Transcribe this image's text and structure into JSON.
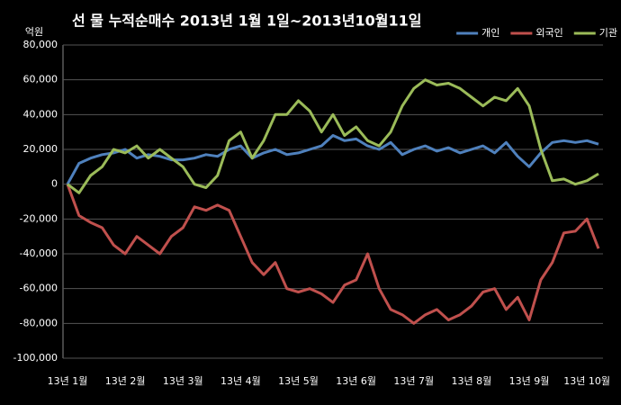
{
  "chart_data": {
    "type": "line",
    "title": "선 물 누적순매수 2013년 1월 1일~2013년10월11일",
    "y_axis_label": "억원",
    "categories": [
      "13년 1월",
      null,
      null,
      null,
      null,
      "13년 2월",
      null,
      null,
      null,
      null,
      "13년 3월",
      null,
      null,
      null,
      null,
      "13년 4월",
      null,
      null,
      null,
      null,
      "13년 5월",
      null,
      null,
      null,
      null,
      "13년 6월",
      null,
      null,
      null,
      null,
      "13년 7월",
      null,
      null,
      null,
      null,
      "13년 8월",
      null,
      null,
      null,
      null,
      "13년 9월",
      null,
      null,
      null,
      null,
      "13년 10월",
      null
    ],
    "series": [
      {
        "name": "개인",
        "color": "#4f81bd",
        "values": [
          0,
          12000,
          15000,
          17000,
          18000,
          20000,
          15000,
          17000,
          16000,
          14000,
          14000,
          15000,
          17000,
          16000,
          20000,
          22000,
          15000,
          18000,
          20000,
          17000,
          18000,
          20000,
          22000,
          28000,
          25000,
          26000,
          22000,
          20000,
          24000,
          17000,
          20000,
          22000,
          19000,
          21000,
          18000,
          20000,
          22000,
          18000,
          24000,
          16000,
          10000,
          18000,
          24000,
          25000,
          24000,
          25000,
          23000
        ]
      },
      {
        "name": "외국인",
        "color": "#c0504d",
        "values": [
          0,
          -18000,
          -22000,
          -25000,
          -35000,
          -40000,
          -30000,
          -35000,
          -40000,
          -30000,
          -25000,
          -13000,
          -15000,
          -12000,
          -15000,
          -30000,
          -45000,
          -52000,
          -45000,
          -60000,
          -62000,
          -60000,
          -63000,
          -68000,
          -58000,
          -55000,
          -40000,
          -60000,
          -72000,
          -75000,
          -80000,
          -75000,
          -72000,
          -78000,
          -75000,
          -70000,
          -62000,
          -60000,
          -72000,
          -65000,
          -78000,
          -55000,
          -45000,
          -28000,
          -27000,
          -20000,
          -37000
        ]
      },
      {
        "name": "기관",
        "color": "#9bbb59",
        "values": [
          0,
          -5000,
          5000,
          10000,
          20000,
          18000,
          22000,
          15000,
          20000,
          15000,
          10000,
          0,
          -2000,
          5000,
          25000,
          30000,
          15000,
          25000,
          40000,
          40000,
          48000,
          42000,
          30000,
          40000,
          28000,
          33000,
          25000,
          22000,
          30000,
          45000,
          55000,
          60000,
          57000,
          58000,
          55000,
          50000,
          45000,
          50000,
          48000,
          55000,
          45000,
          20000,
          2000,
          3000,
          0,
          2000,
          6000
        ]
      }
    ],
    "ylim": [
      -100000,
      80000
    ],
    "yticks": [
      {
        "value": -100000,
        "label": "-100,000"
      },
      {
        "value": -80000,
        "label": "-80,000"
      },
      {
        "value": -60000,
        "label": "-60,000"
      },
      {
        "value": -40000,
        "label": "-40,000"
      },
      {
        "value": -20000,
        "label": "-20,000"
      },
      0,
      {
        "value": 20000,
        "label": "20,000"
      },
      {
        "value": 40000,
        "label": "40,000"
      },
      {
        "value": 60000,
        "label": "60,000"
      },
      {
        "value": 80000,
        "label": "80,000"
      }
    ],
    "grid": true,
    "legend": "top-right"
  }
}
